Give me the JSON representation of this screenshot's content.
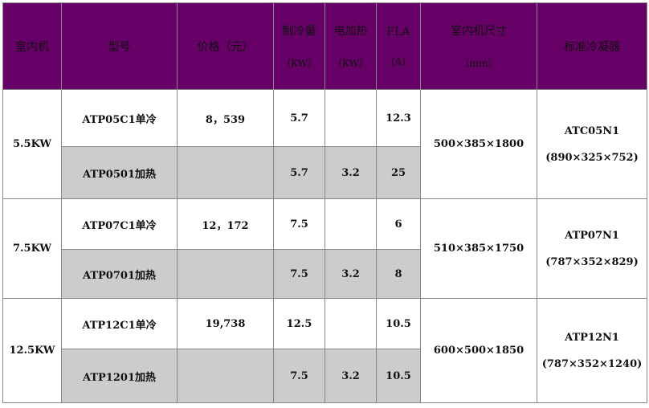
{
  "header": {
    "unit": "室内机",
    "model": "型号",
    "price": "价格（元）",
    "cooling": "制冷量",
    "cooling_unit": "（KW）",
    "heating": "电加热",
    "heating_unit": "（KW）",
    "fla": "FLA",
    "fla_unit": "(A)",
    "size": "室内机尺寸",
    "size_unit": "（mm）",
    "condenser": "标准冷凝器"
  },
  "groups": [
    {
      "unit": "5.5KW",
      "size": "500×385×1800",
      "condenser": "ATC05N1",
      "condenser_size": "(890×325×752)",
      "rows": [
        {
          "model": "ATP05C1单冷",
          "price": "8，539",
          "cooling": "5.7",
          "heating": "",
          "fla": "12.3"
        },
        {
          "model": "ATP0501加热",
          "price": "",
          "cooling": "5.7",
          "heating": "3.2",
          "fla": "25"
        }
      ]
    },
    {
      "unit": "7.5KW",
      "size": "510×385×1750",
      "condenser": "ATP07N1",
      "condenser_size": "(787×352×829)",
      "rows": [
        {
          "model": "ATP07C1单冷",
          "price": "12，172",
          "cooling": "7.5",
          "heating": "",
          "fla": "6"
        },
        {
          "model": "ATP0701加热",
          "price": "",
          "cooling": "7.5",
          "heating": "3.2",
          "fla": "8"
        }
      ]
    },
    {
      "unit": "12.5KW",
      "size": "600×500×1850",
      "condenser": "ATP12N1",
      "condenser_size": "(787×352×1240)",
      "rows": [
        {
          "model": "ATP12C1单冷",
          "price": "19,738",
          "cooling": "12.5",
          "heating": "",
          "fla": "10.5"
        },
        {
          "model": "ATP1201加热",
          "price": "",
          "cooling": "7.5",
          "heating": "3.2",
          "fla": "10.5"
        }
      ]
    }
  ],
  "colors": {
    "header_bg": "#660066",
    "alt_row_bg": "#cccccc"
  }
}
